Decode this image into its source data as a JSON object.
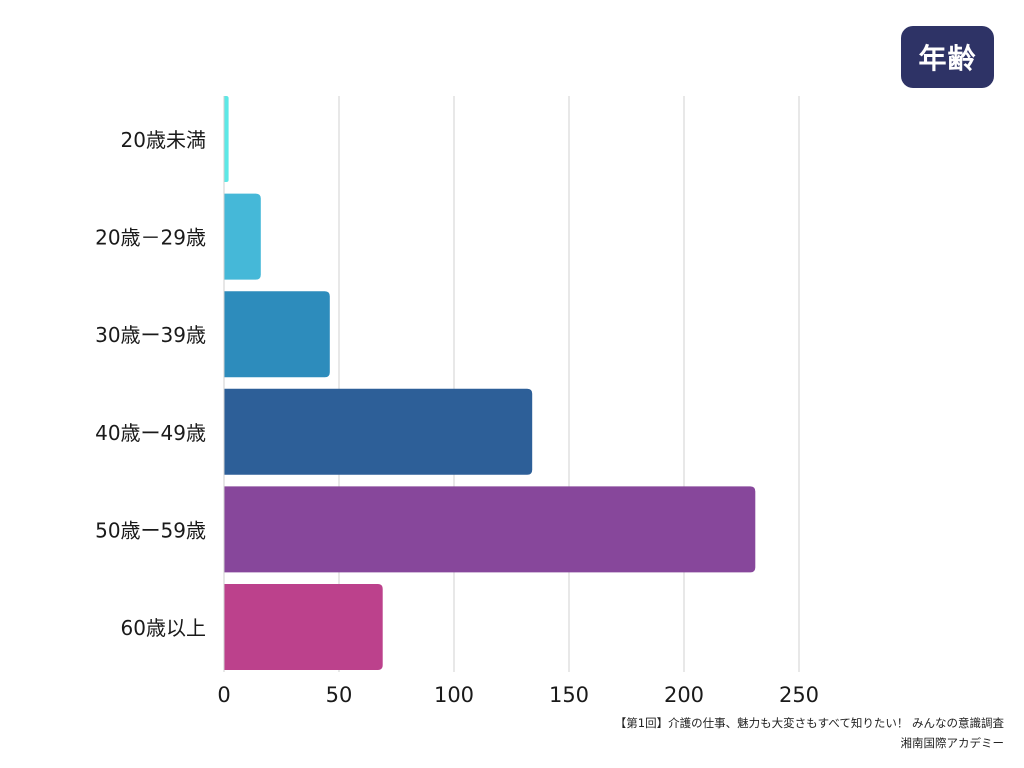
{
  "badge": {
    "label": "年齢",
    "bg_color": "#2e3366"
  },
  "chart_data": {
    "type": "bar",
    "orientation": "horizontal",
    "categories": [
      "20歳未満",
      "20歳－29歳",
      "30歳ー39歳",
      "40歳ー49歳",
      "50歳ー59歳",
      "60歳以上"
    ],
    "values": [
      2,
      16,
      46,
      134,
      231,
      69
    ],
    "colors": [
      "#5ce8e6",
      "#45b8d8",
      "#2d8cbc",
      "#2d5f98",
      "#87479b",
      "#bc418c"
    ],
    "xlim": [
      0,
      250
    ],
    "xticks": [
      0,
      50,
      100,
      150,
      200,
      250
    ],
    "grid": true,
    "title": "",
    "xlabel": "",
    "ylabel": ""
  },
  "source": {
    "line1": "【第1回】介護の仕事、魅力も大変さもすべて知りたい！ みんなの意識調査",
    "line2": "湘南国際アカデミー"
  }
}
